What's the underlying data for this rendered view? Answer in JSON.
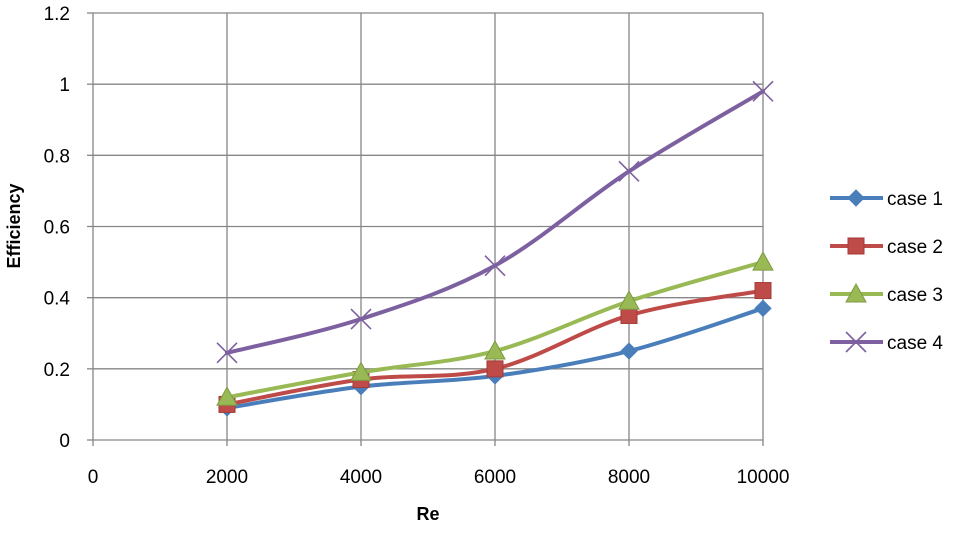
{
  "chart_data": {
    "type": "line",
    "title": "",
    "xlabel": "Re",
    "ylabel": "Efficiency",
    "xlim": [
      0,
      10000
    ],
    "ylim": [
      0,
      1.2
    ],
    "x_ticks": [
      0,
      2000,
      4000,
      6000,
      8000,
      10000
    ],
    "x_tick_labels": [
      "0",
      "2000",
      "4000",
      "6000",
      "8000",
      "10000"
    ],
    "y_ticks": [
      0,
      0.2,
      0.4,
      0.6,
      0.8,
      1.0,
      1.2
    ],
    "y_tick_labels": [
      "0",
      "0.2",
      "0.4",
      "0.6",
      "0.8",
      "1",
      "1.2"
    ],
    "grid": true,
    "legend_position": "right",
    "x": [
      2000,
      4000,
      6000,
      8000,
      10000
    ],
    "series": [
      {
        "name": "case 1",
        "values": [
          0.09,
          0.15,
          0.18,
          0.25,
          0.37
        ],
        "color": "#4a7ebb",
        "marker": "diamond"
      },
      {
        "name": "case 2",
        "values": [
          0.1,
          0.17,
          0.2,
          0.35,
          0.42
        ],
        "color": "#be4b48",
        "marker": "square"
      },
      {
        "name": "case 3",
        "values": [
          0.12,
          0.19,
          0.25,
          0.39,
          0.5
        ],
        "color": "#98b954",
        "marker": "triangle"
      },
      {
        "name": "case 4",
        "values": [
          0.245,
          0.34,
          0.49,
          0.755,
          0.98
        ],
        "color": "#7d60a0",
        "marker": "x"
      }
    ]
  }
}
